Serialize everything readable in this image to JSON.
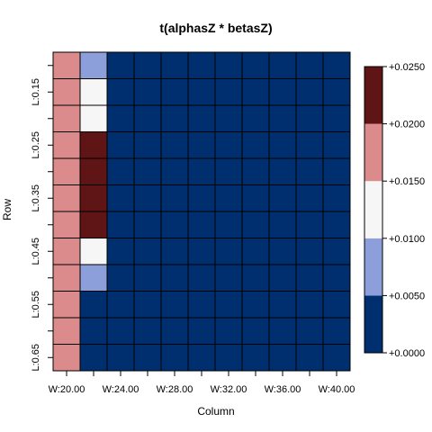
{
  "chart_data": {
    "type": "heatmap",
    "title": "t(alphasZ * betasZ)",
    "xlabel": "Column",
    "ylabel": "Row",
    "rows": [
      "",
      "L:0.15",
      "",
      "L:0.25",
      "",
      "L:0.35",
      "",
      "L:0.45",
      "",
      "L:0.55",
      "",
      "L:0.65"
    ],
    "columns": [
      "W:20.00",
      "",
      "W:24.00",
      "",
      "W:28.00",
      "",
      "W:32.00",
      "",
      "W:36.00",
      "",
      "W:40.00"
    ],
    "values": [
      [
        0.017,
        0.008,
        0.002,
        0.002,
        0.002,
        0.002,
        0.002,
        0.002,
        0.002,
        0.002,
        0.002
      ],
      [
        0.017,
        0.013,
        0.002,
        0.002,
        0.002,
        0.002,
        0.002,
        0.002,
        0.002,
        0.002,
        0.002
      ],
      [
        0.017,
        0.013,
        0.002,
        0.002,
        0.002,
        0.002,
        0.002,
        0.002,
        0.002,
        0.002,
        0.002
      ],
      [
        0.017,
        0.022,
        0.002,
        0.002,
        0.002,
        0.002,
        0.002,
        0.002,
        0.002,
        0.002,
        0.002
      ],
      [
        0.017,
        0.022,
        0.002,
        0.002,
        0.002,
        0.002,
        0.002,
        0.002,
        0.002,
        0.002,
        0.002
      ],
      [
        0.017,
        0.022,
        0.002,
        0.002,
        0.002,
        0.002,
        0.002,
        0.002,
        0.002,
        0.002,
        0.002
      ],
      [
        0.017,
        0.022,
        0.002,
        0.002,
        0.002,
        0.002,
        0.002,
        0.002,
        0.002,
        0.002,
        0.002
      ],
      [
        0.017,
        0.013,
        0.002,
        0.002,
        0.002,
        0.002,
        0.002,
        0.002,
        0.002,
        0.002,
        0.002
      ],
      [
        0.017,
        0.008,
        0.002,
        0.002,
        0.002,
        0.002,
        0.002,
        0.002,
        0.002,
        0.002,
        0.002
      ],
      [
        0.017,
        0.002,
        0.002,
        0.002,
        0.002,
        0.002,
        0.002,
        0.002,
        0.002,
        0.002,
        0.002
      ],
      [
        0.017,
        0.002,
        0.002,
        0.002,
        0.002,
        0.002,
        0.002,
        0.002,
        0.002,
        0.002,
        0.002
      ],
      [
        0.017,
        0.002,
        0.002,
        0.002,
        0.002,
        0.002,
        0.002,
        0.002,
        0.002,
        0.002,
        0.002
      ]
    ],
    "color_scale": {
      "breaks": [
        0.0,
        0.005,
        0.01,
        0.015,
        0.02,
        0.025
      ],
      "colors": [
        "#002F70",
        "#8C9FDB",
        "#F6F6F6",
        "#DB8B8B",
        "#5F1415"
      ],
      "tick_labels": [
        "+0.0000",
        "+0.0050",
        "+0.0100",
        "+0.0150",
        "+0.0200",
        "+0.0250"
      ],
      "placement": "right"
    },
    "grid": true
  }
}
